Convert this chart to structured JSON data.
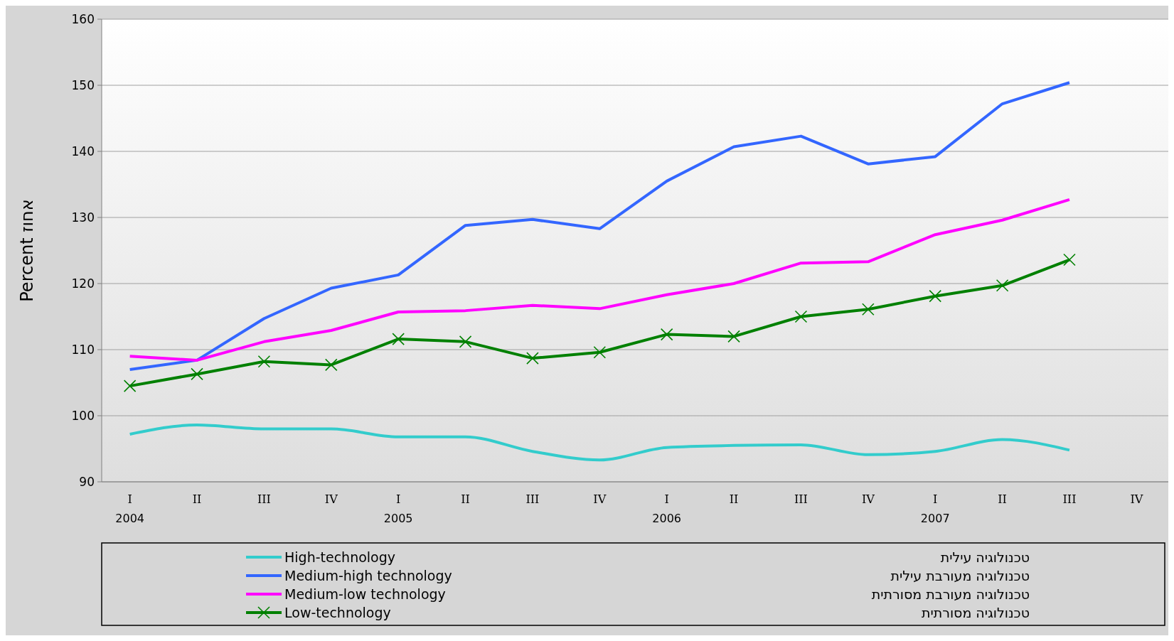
{
  "chart_data": {
    "type": "line",
    "ylabel": "Percent  אחוז",
    "categories": [
      "I",
      "II",
      "III",
      "IV",
      "I",
      "II",
      "III",
      "IV",
      "I",
      "II",
      "III",
      "IV",
      "I",
      "II",
      "III",
      "IV"
    ],
    "series": [
      {
        "name": "High-technology",
        "color": "#33cccc",
        "values": [
          97.2,
          98.6,
          98.0,
          98.0,
          96.8,
          96.8,
          94.6,
          93.3,
          95.2,
          95.5,
          95.6,
          94.1,
          94.6,
          96.4,
          94.8,
          null
        ]
      },
      {
        "name": "Medium-high technology",
        "color": "#3366ff",
        "values": [
          107.0,
          108.4,
          114.7,
          119.3,
          121.3,
          128.8,
          129.7,
          128.3,
          135.5,
          140.7,
          142.3,
          138.1,
          139.2,
          147.2,
          150.4,
          null
        ]
      },
      {
        "name": "Medium-low technology",
        "color": "#ff00ff",
        "values": [
          109.0,
          108.4,
          111.2,
          112.9,
          115.7,
          115.9,
          116.7,
          116.2,
          118.3,
          120.0,
          123.1,
          123.3,
          127.4,
          129.6,
          132.7,
          null
        ]
      },
      {
        "name": "Low-technology",
        "color": "#008000",
        "marker": "cross",
        "values": [
          104.5,
          106.3,
          108.2,
          107.7,
          111.6,
          111.2,
          108.7,
          109.6,
          112.3,
          112.0,
          115.0,
          116.1,
          118.1,
          119.7,
          123.6,
          null
        ]
      }
    ],
    "ylim": [
      90,
      160
    ],
    "yticks": [
      90,
      100,
      110,
      120,
      130,
      140,
      150,
      160
    ],
    "grid": "y",
    "legend": "bottom",
    "annotations": [
      "2004",
      "2005",
      "2006",
      "2007",
      "טכנולוגיה עילית",
      "טכנולוגיה מעורבת עילית",
      "טכנולוגיה מעורבת מסורתית",
      "טכנולוגיה מסורתית"
    ]
  }
}
